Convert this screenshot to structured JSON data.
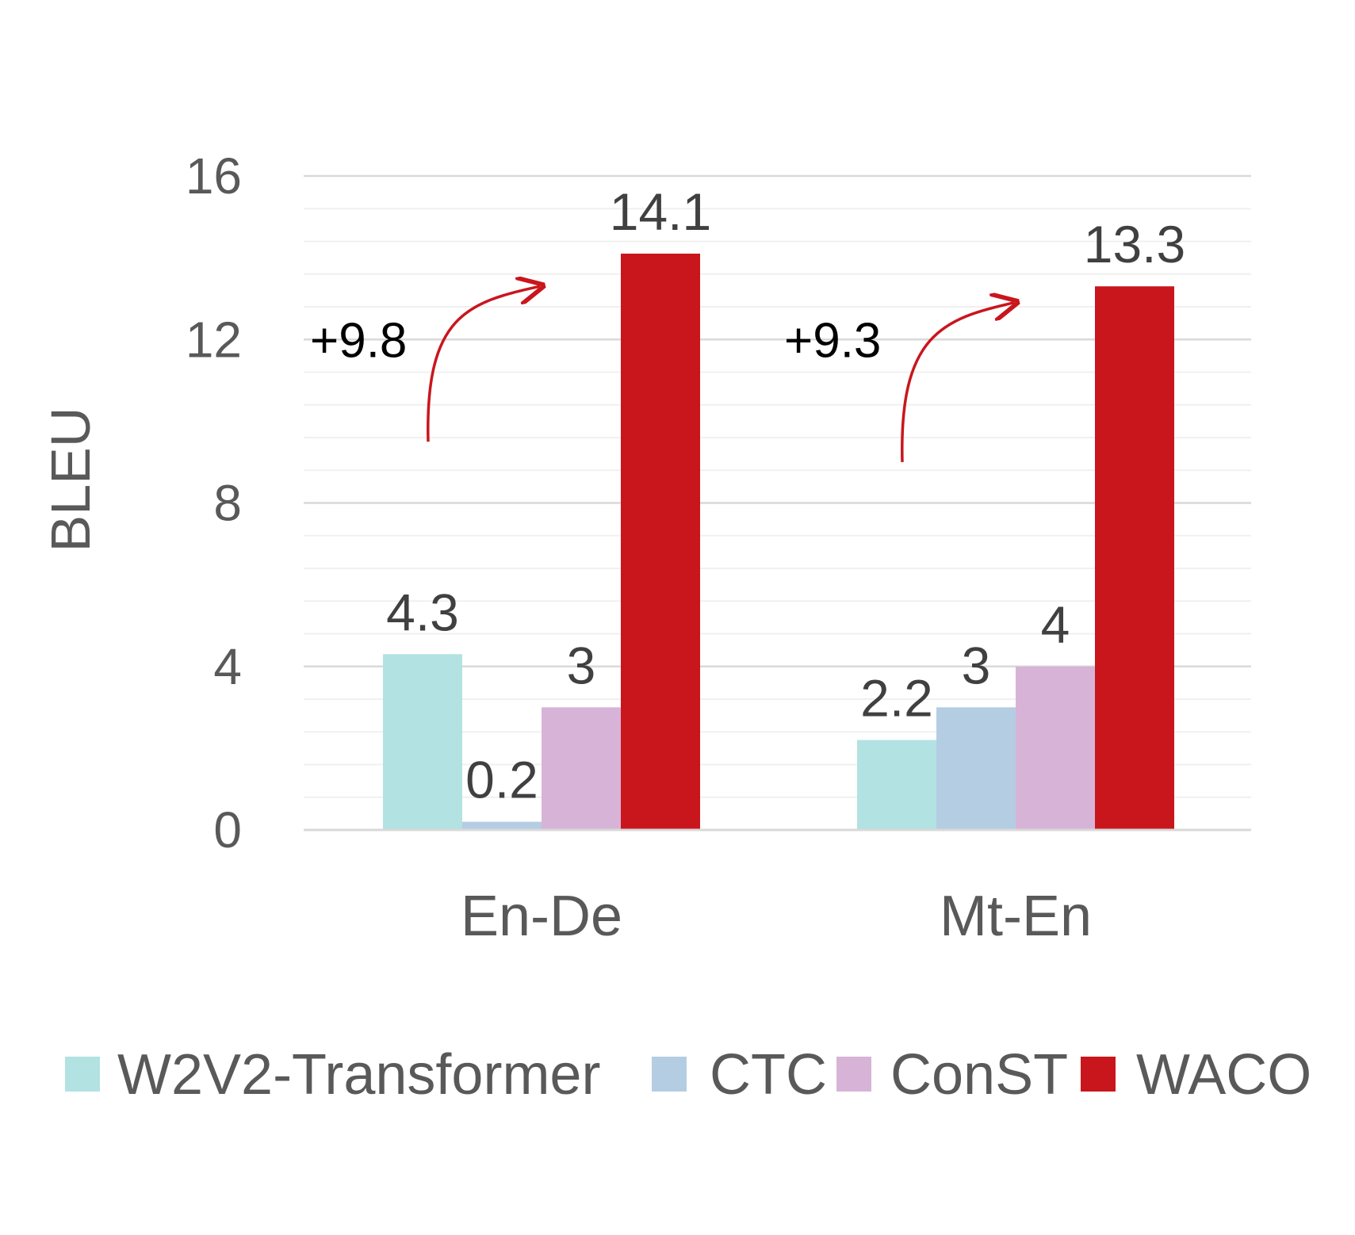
{
  "chart_data": {
    "type": "bar",
    "title": "",
    "xlabel": "",
    "ylabel": "BLEU",
    "ylim": [
      0,
      16
    ],
    "yticks": [
      "0",
      "4",
      "8",
      "12",
      "16"
    ],
    "minor_grid_step": 0.8,
    "grid": true,
    "legend_position": "bottom",
    "categories": [
      "En-De",
      "Mt-En"
    ],
    "series": [
      {
        "name": "W2V2-Transformer",
        "color": "#b2e2e2",
        "values": [
          4.3,
          2.2
        ],
        "labels": [
          "4.3",
          "2.2"
        ]
      },
      {
        "name": "CTC",
        "color": "#b4cde3",
        "values": [
          0.2,
          3
        ],
        "labels": [
          "0.2",
          "3"
        ]
      },
      {
        "name": "ConST",
        "color": "#d7b4d7",
        "values": [
          3,
          4
        ],
        "labels": [
          "3",
          "4"
        ]
      },
      {
        "name": "WACO",
        "color": "#c9161d",
        "values": [
          14.1,
          13.3
        ],
        "labels": [
          "14.1",
          "13.3"
        ]
      }
    ],
    "annotations": [
      {
        "text": "+9.8",
        "category": "En-De",
        "arrow_color": "#c9161d"
      },
      {
        "text": "+9.3",
        "category": "Mt-En",
        "arrow_color": "#c9161d"
      }
    ]
  }
}
